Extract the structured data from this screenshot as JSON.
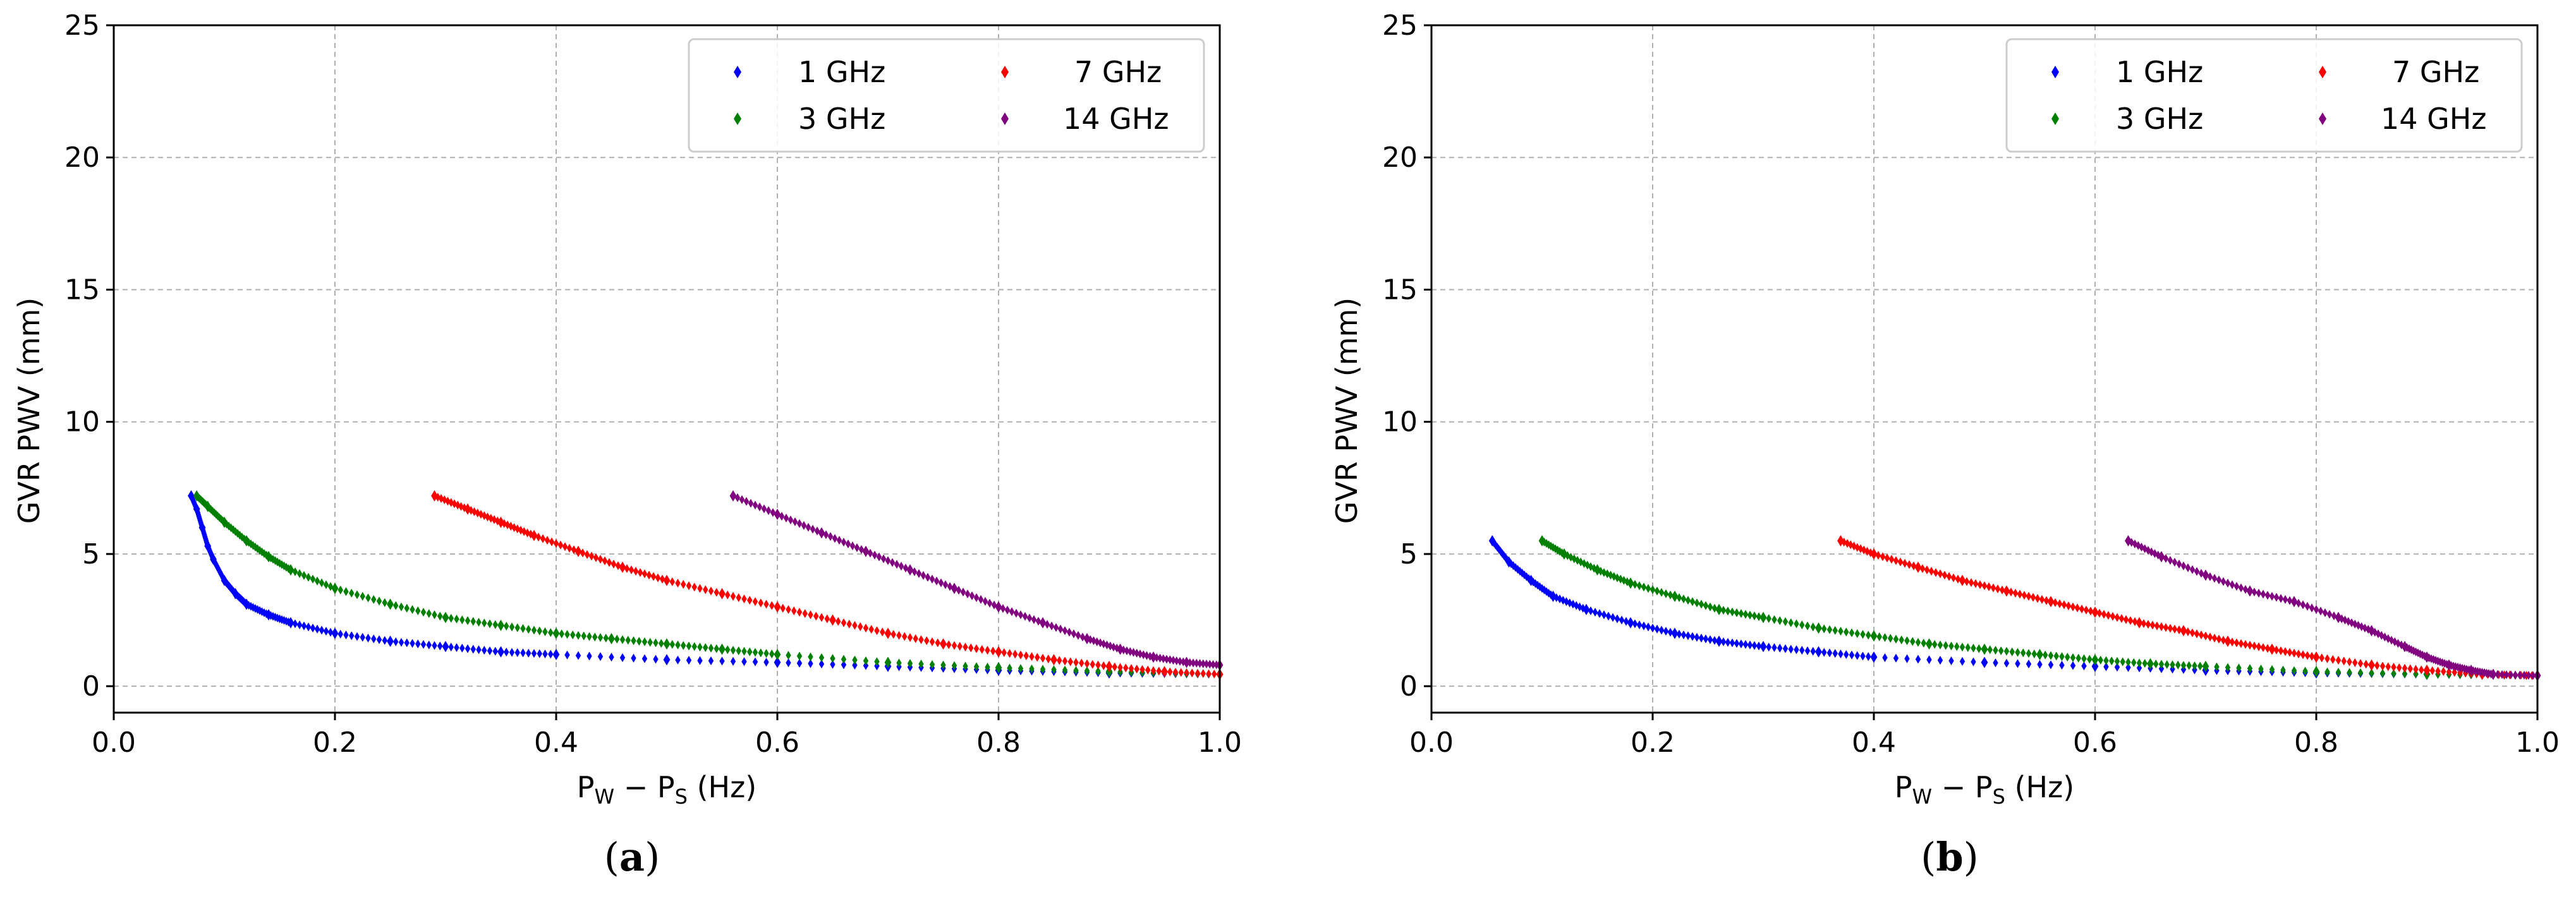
{
  "chart_data": [
    {
      "type": "scatter",
      "panel": "a",
      "caption_open": "(",
      "caption_letter": "a",
      "caption_close": ")",
      "xlabel": "P_W − P_S (Hz)",
      "xlabel_main_1": "P",
      "xlabel_sub_1": "W",
      "xlabel_mid": " − P",
      "xlabel_sub_2": "S",
      "xlabel_tail": " (Hz)",
      "ylabel": "GVR PWV (mm)",
      "xlim": [
        0.0,
        1.0
      ],
      "ylim": [
        -1.0,
        25.0
      ],
      "xticks": [
        0.0,
        0.2,
        0.4,
        0.6,
        0.8,
        1.0
      ],
      "xtick_labels": [
        "0.0",
        "0.2",
        "0.4",
        "0.6",
        "0.8",
        "1.0"
      ],
      "yticks": [
        0,
        5,
        10,
        15,
        20,
        25
      ],
      "ytick_labels": [
        "0",
        "5",
        "10",
        "15",
        "20",
        "25"
      ],
      "grid": true,
      "legend_position": "top-right",
      "series": [
        {
          "name": "1 GHz",
          "color": "#0000ff",
          "x": [
            0.07,
            0.075,
            0.08,
            0.085,
            0.09,
            0.1,
            0.11,
            0.12,
            0.14,
            0.16,
            0.2,
            0.25,
            0.3,
            0.35,
            0.4,
            0.5,
            0.6,
            0.7,
            0.8,
            0.9,
            1.0
          ],
          "y": [
            7.2,
            6.7,
            6.0,
            5.3,
            4.8,
            4.0,
            3.5,
            3.1,
            2.7,
            2.4,
            2.0,
            1.7,
            1.5,
            1.3,
            1.2,
            1.0,
            0.9,
            0.75,
            0.6,
            0.5,
            0.45
          ]
        },
        {
          "name": "3 GHz",
          "color": "#008000",
          "x": [
            0.075,
            0.085,
            0.1,
            0.12,
            0.14,
            0.16,
            0.2,
            0.25,
            0.3,
            0.35,
            0.4,
            0.45,
            0.5,
            0.55,
            0.6,
            0.7,
            0.8,
            0.9,
            1.0
          ],
          "y": [
            7.2,
            6.8,
            6.2,
            5.5,
            4.9,
            4.4,
            3.7,
            3.1,
            2.6,
            2.3,
            2.0,
            1.8,
            1.6,
            1.4,
            1.2,
            0.9,
            0.7,
            0.55,
            0.45
          ]
        },
        {
          "name": "7 GHz",
          "color": "#ff0000",
          "x": [
            0.29,
            0.32,
            0.35,
            0.38,
            0.42,
            0.46,
            0.5,
            0.55,
            0.6,
            0.65,
            0.7,
            0.75,
            0.8,
            0.85,
            0.9,
            0.95,
            1.0
          ],
          "y": [
            7.2,
            6.7,
            6.2,
            5.7,
            5.1,
            4.5,
            4.0,
            3.5,
            3.0,
            2.5,
            2.0,
            1.6,
            1.3,
            1.0,
            0.75,
            0.55,
            0.45
          ]
        },
        {
          "name": "14 GHz",
          "color": "#800080",
          "x": [
            0.56,
            0.6,
            0.64,
            0.68,
            0.72,
            0.76,
            0.8,
            0.84,
            0.88,
            0.91,
            0.94,
            0.97,
            1.0
          ],
          "y": [
            7.2,
            6.5,
            5.8,
            5.1,
            4.4,
            3.7,
            3.0,
            2.4,
            1.8,
            1.4,
            1.1,
            0.9,
            0.8
          ]
        }
      ]
    },
    {
      "type": "scatter",
      "panel": "b",
      "caption_open": "(",
      "caption_letter": "b",
      "caption_close": ")",
      "xlabel": "P_W − P_S (Hz)",
      "xlabel_main_1": "P",
      "xlabel_sub_1": "W",
      "xlabel_mid": " − P",
      "xlabel_sub_2": "S",
      "xlabel_tail": " (Hz)",
      "ylabel": "GVR PWV (mm)",
      "xlim": [
        0.0,
        1.0
      ],
      "ylim": [
        -1.0,
        25.0
      ],
      "xticks": [
        0.0,
        0.2,
        0.4,
        0.6,
        0.8,
        1.0
      ],
      "xtick_labels": [
        "0.0",
        "0.2",
        "0.4",
        "0.6",
        "0.8",
        "1.0"
      ],
      "yticks": [
        0,
        5,
        10,
        15,
        20,
        25
      ],
      "ytick_labels": [
        "0",
        "5",
        "10",
        "15",
        "20",
        "25"
      ],
      "grid": true,
      "legend_position": "top-right",
      "series": [
        {
          "name": "1 GHz",
          "color": "#0000ff",
          "x": [
            0.055,
            0.07,
            0.09,
            0.11,
            0.14,
            0.18,
            0.22,
            0.26,
            0.3,
            0.35,
            0.4,
            0.5,
            0.6,
            0.7,
            0.8,
            0.9,
            1.0
          ],
          "y": [
            5.5,
            4.7,
            4.0,
            3.4,
            2.9,
            2.4,
            2.0,
            1.7,
            1.5,
            1.3,
            1.1,
            0.9,
            0.75,
            0.6,
            0.5,
            0.45,
            0.4
          ]
        },
        {
          "name": "3 GHz",
          "color": "#008000",
          "x": [
            0.1,
            0.12,
            0.15,
            0.18,
            0.22,
            0.26,
            0.3,
            0.35,
            0.4,
            0.45,
            0.5,
            0.55,
            0.6,
            0.65,
            0.7,
            0.8,
            0.9,
            1.0
          ],
          "y": [
            5.5,
            5.0,
            4.4,
            3.9,
            3.4,
            2.9,
            2.6,
            2.2,
            1.9,
            1.6,
            1.4,
            1.2,
            1.0,
            0.85,
            0.75,
            0.55,
            0.45,
            0.4
          ]
        },
        {
          "name": "7 GHz",
          "color": "#ff0000",
          "x": [
            0.37,
            0.4,
            0.44,
            0.48,
            0.52,
            0.56,
            0.6,
            0.64,
            0.68,
            0.72,
            0.76,
            0.8,
            0.85,
            0.9,
            0.95,
            1.0
          ],
          "y": [
            5.5,
            5.0,
            4.5,
            4.0,
            3.6,
            3.2,
            2.8,
            2.4,
            2.1,
            1.7,
            1.4,
            1.1,
            0.8,
            0.6,
            0.45,
            0.4
          ]
        },
        {
          "name": "14 GHz",
          "color": "#800080",
          "x": [
            0.63,
            0.66,
            0.7,
            0.74,
            0.78,
            0.82,
            0.85,
            0.88,
            0.9,
            0.92,
            0.94,
            0.96,
            1.0
          ],
          "y": [
            5.5,
            4.9,
            4.2,
            3.6,
            3.2,
            2.6,
            2.1,
            1.5,
            1.1,
            0.8,
            0.6,
            0.45,
            0.4
          ]
        }
      ]
    }
  ]
}
